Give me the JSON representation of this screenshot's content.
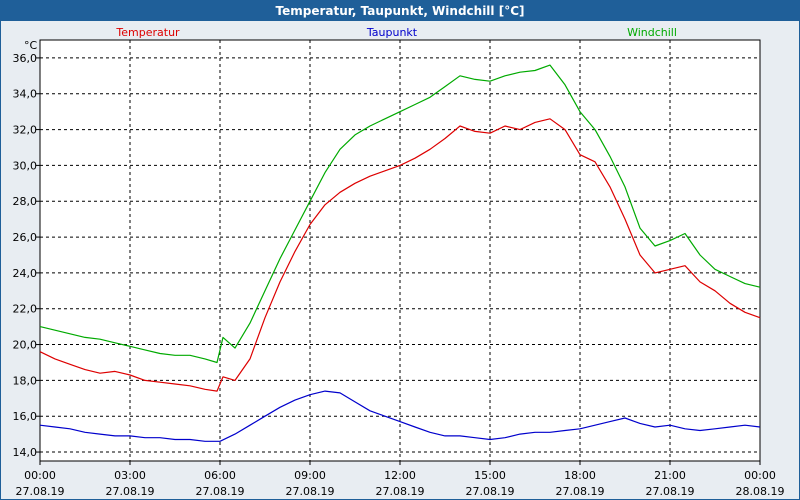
{
  "window": {
    "title": "Temperatur, Taupunkt, Windchill [°C]"
  },
  "chart_data": {
    "type": "line",
    "title": "Temperatur, Taupunkt, Windchill [°C]",
    "ylabel": "°C",
    "xlabel": "",
    "ylim": [
      13.5,
      37.0
    ],
    "xlim": [
      0,
      24
    ],
    "grid": true,
    "y_ticks": [
      "14,0",
      "16,0",
      "18,0",
      "20,0",
      "22,0",
      "24,0",
      "26,0",
      "28,0",
      "30,0",
      "32,0",
      "34,0",
      "36,0"
    ],
    "y_tick_values": [
      14,
      16,
      18,
      20,
      22,
      24,
      26,
      28,
      30,
      32,
      34,
      36
    ],
    "x_ticks": [
      {
        "hour": 0,
        "time": "00:00",
        "date": "27.08.19"
      },
      {
        "hour": 3,
        "time": "03:00",
        "date": "27.08.19"
      },
      {
        "hour": 6,
        "time": "06:00",
        "date": "27.08.19"
      },
      {
        "hour": 9,
        "time": "09:00",
        "date": "27.08.19"
      },
      {
        "hour": 12,
        "time": "12:00",
        "date": "27.08.19"
      },
      {
        "hour": 15,
        "time": "15:00",
        "date": "27.08.19"
      },
      {
        "hour": 18,
        "time": "18:00",
        "date": "27.08.19"
      },
      {
        "hour": 21,
        "time": "21:00",
        "date": "27.08.19"
      },
      {
        "hour": 24,
        "time": "00:00",
        "date": "28.08.19"
      }
    ],
    "series": [
      {
        "name": "Temperatur",
        "color": "#dd0000",
        "points": [
          [
            0,
            19.6
          ],
          [
            0.5,
            19.2
          ],
          [
            1,
            18.9
          ],
          [
            1.5,
            18.6
          ],
          [
            2,
            18.4
          ],
          [
            2.5,
            18.5
          ],
          [
            3,
            18.3
          ],
          [
            3.5,
            18.0
          ],
          [
            4,
            17.9
          ],
          [
            4.5,
            17.8
          ],
          [
            5,
            17.7
          ],
          [
            5.5,
            17.5
          ],
          [
            5.9,
            17.4
          ],
          [
            6.1,
            18.2
          ],
          [
            6.5,
            18.0
          ],
          [
            7,
            19.2
          ],
          [
            7.5,
            21.5
          ],
          [
            8,
            23.5
          ],
          [
            8.5,
            25.2
          ],
          [
            9,
            26.7
          ],
          [
            9.5,
            27.8
          ],
          [
            10,
            28.5
          ],
          [
            10.5,
            29.0
          ],
          [
            11,
            29.4
          ],
          [
            11.5,
            29.7
          ],
          [
            12,
            30.0
          ],
          [
            12.5,
            30.4
          ],
          [
            13,
            30.9
          ],
          [
            13.5,
            31.5
          ],
          [
            14,
            32.2
          ],
          [
            14.5,
            31.9
          ],
          [
            15,
            31.8
          ],
          [
            15.5,
            32.2
          ],
          [
            16,
            32.0
          ],
          [
            16.5,
            32.4
          ],
          [
            17,
            32.6
          ],
          [
            17.5,
            32.0
          ],
          [
            18,
            30.6
          ],
          [
            18.5,
            30.2
          ],
          [
            19,
            28.8
          ],
          [
            19.5,
            27.0
          ],
          [
            20,
            25.0
          ],
          [
            20.5,
            24.0
          ],
          [
            21,
            24.2
          ],
          [
            21.5,
            24.4
          ],
          [
            22,
            23.5
          ],
          [
            22.5,
            23.0
          ],
          [
            23,
            22.3
          ],
          [
            23.5,
            21.8
          ],
          [
            24,
            21.5
          ]
        ]
      },
      {
        "name": "Taupunkt",
        "color": "#0000cc",
        "points": [
          [
            0,
            15.5
          ],
          [
            0.5,
            15.4
          ],
          [
            1,
            15.3
          ],
          [
            1.5,
            15.1
          ],
          [
            2,
            15.0
          ],
          [
            2.5,
            14.9
          ],
          [
            3,
            14.9
          ],
          [
            3.5,
            14.8
          ],
          [
            4,
            14.8
          ],
          [
            4.5,
            14.7
          ],
          [
            5,
            14.7
          ],
          [
            5.5,
            14.6
          ],
          [
            6,
            14.6
          ],
          [
            6.5,
            15.0
          ],
          [
            7,
            15.5
          ],
          [
            7.5,
            16.0
          ],
          [
            8,
            16.5
          ],
          [
            8.5,
            16.9
          ],
          [
            9,
            17.2
          ],
          [
            9.5,
            17.4
          ],
          [
            10,
            17.3
          ],
          [
            10.5,
            16.8
          ],
          [
            11,
            16.3
          ],
          [
            11.5,
            16.0
          ],
          [
            12,
            15.7
          ],
          [
            12.5,
            15.4
          ],
          [
            13,
            15.1
          ],
          [
            13.5,
            14.9
          ],
          [
            14,
            14.9
          ],
          [
            14.5,
            14.8
          ],
          [
            15,
            14.7
          ],
          [
            15.5,
            14.8
          ],
          [
            16,
            15.0
          ],
          [
            16.5,
            15.1
          ],
          [
            17,
            15.1
          ],
          [
            17.5,
            15.2
          ],
          [
            18,
            15.3
          ],
          [
            18.5,
            15.5
          ],
          [
            19,
            15.7
          ],
          [
            19.5,
            15.9
          ],
          [
            20,
            15.6
          ],
          [
            20.5,
            15.4
          ],
          [
            21,
            15.5
          ],
          [
            21.5,
            15.3
          ],
          [
            22,
            15.2
          ],
          [
            22.5,
            15.3
          ],
          [
            23,
            15.4
          ],
          [
            23.5,
            15.5
          ],
          [
            24,
            15.4
          ]
        ]
      },
      {
        "name": "Windchill",
        "color": "#00aa00",
        "points": [
          [
            0,
            21.0
          ],
          [
            0.5,
            20.8
          ],
          [
            1,
            20.6
          ],
          [
            1.5,
            20.4
          ],
          [
            2,
            20.3
          ],
          [
            2.5,
            20.1
          ],
          [
            3,
            19.9
          ],
          [
            3.5,
            19.7
          ],
          [
            4,
            19.5
          ],
          [
            4.5,
            19.4
          ],
          [
            5,
            19.4
          ],
          [
            5.5,
            19.2
          ],
          [
            5.9,
            19.0
          ],
          [
            6.1,
            20.4
          ],
          [
            6.5,
            19.8
          ],
          [
            7,
            21.2
          ],
          [
            7.5,
            23.0
          ],
          [
            8,
            24.8
          ],
          [
            8.5,
            26.4
          ],
          [
            9,
            28.0
          ],
          [
            9.5,
            29.6
          ],
          [
            10,
            30.9
          ],
          [
            10.5,
            31.7
          ],
          [
            11,
            32.2
          ],
          [
            11.5,
            32.6
          ],
          [
            12,
            33.0
          ],
          [
            12.5,
            33.4
          ],
          [
            13,
            33.8
          ],
          [
            13.5,
            34.4
          ],
          [
            14,
            35.0
          ],
          [
            14.5,
            34.8
          ],
          [
            15,
            34.7
          ],
          [
            15.5,
            35.0
          ],
          [
            16,
            35.2
          ],
          [
            16.5,
            35.3
          ],
          [
            17,
            35.6
          ],
          [
            17.5,
            34.5
          ],
          [
            18,
            33.0
          ],
          [
            18.5,
            32.0
          ],
          [
            19,
            30.5
          ],
          [
            19.5,
            28.8
          ],
          [
            20,
            26.5
          ],
          [
            20.5,
            25.5
          ],
          [
            21,
            25.8
          ],
          [
            21.5,
            26.2
          ],
          [
            22,
            25.0
          ],
          [
            22.5,
            24.2
          ],
          [
            23,
            23.8
          ],
          [
            23.5,
            23.4
          ],
          [
            24,
            23.2
          ]
        ]
      }
    ]
  }
}
